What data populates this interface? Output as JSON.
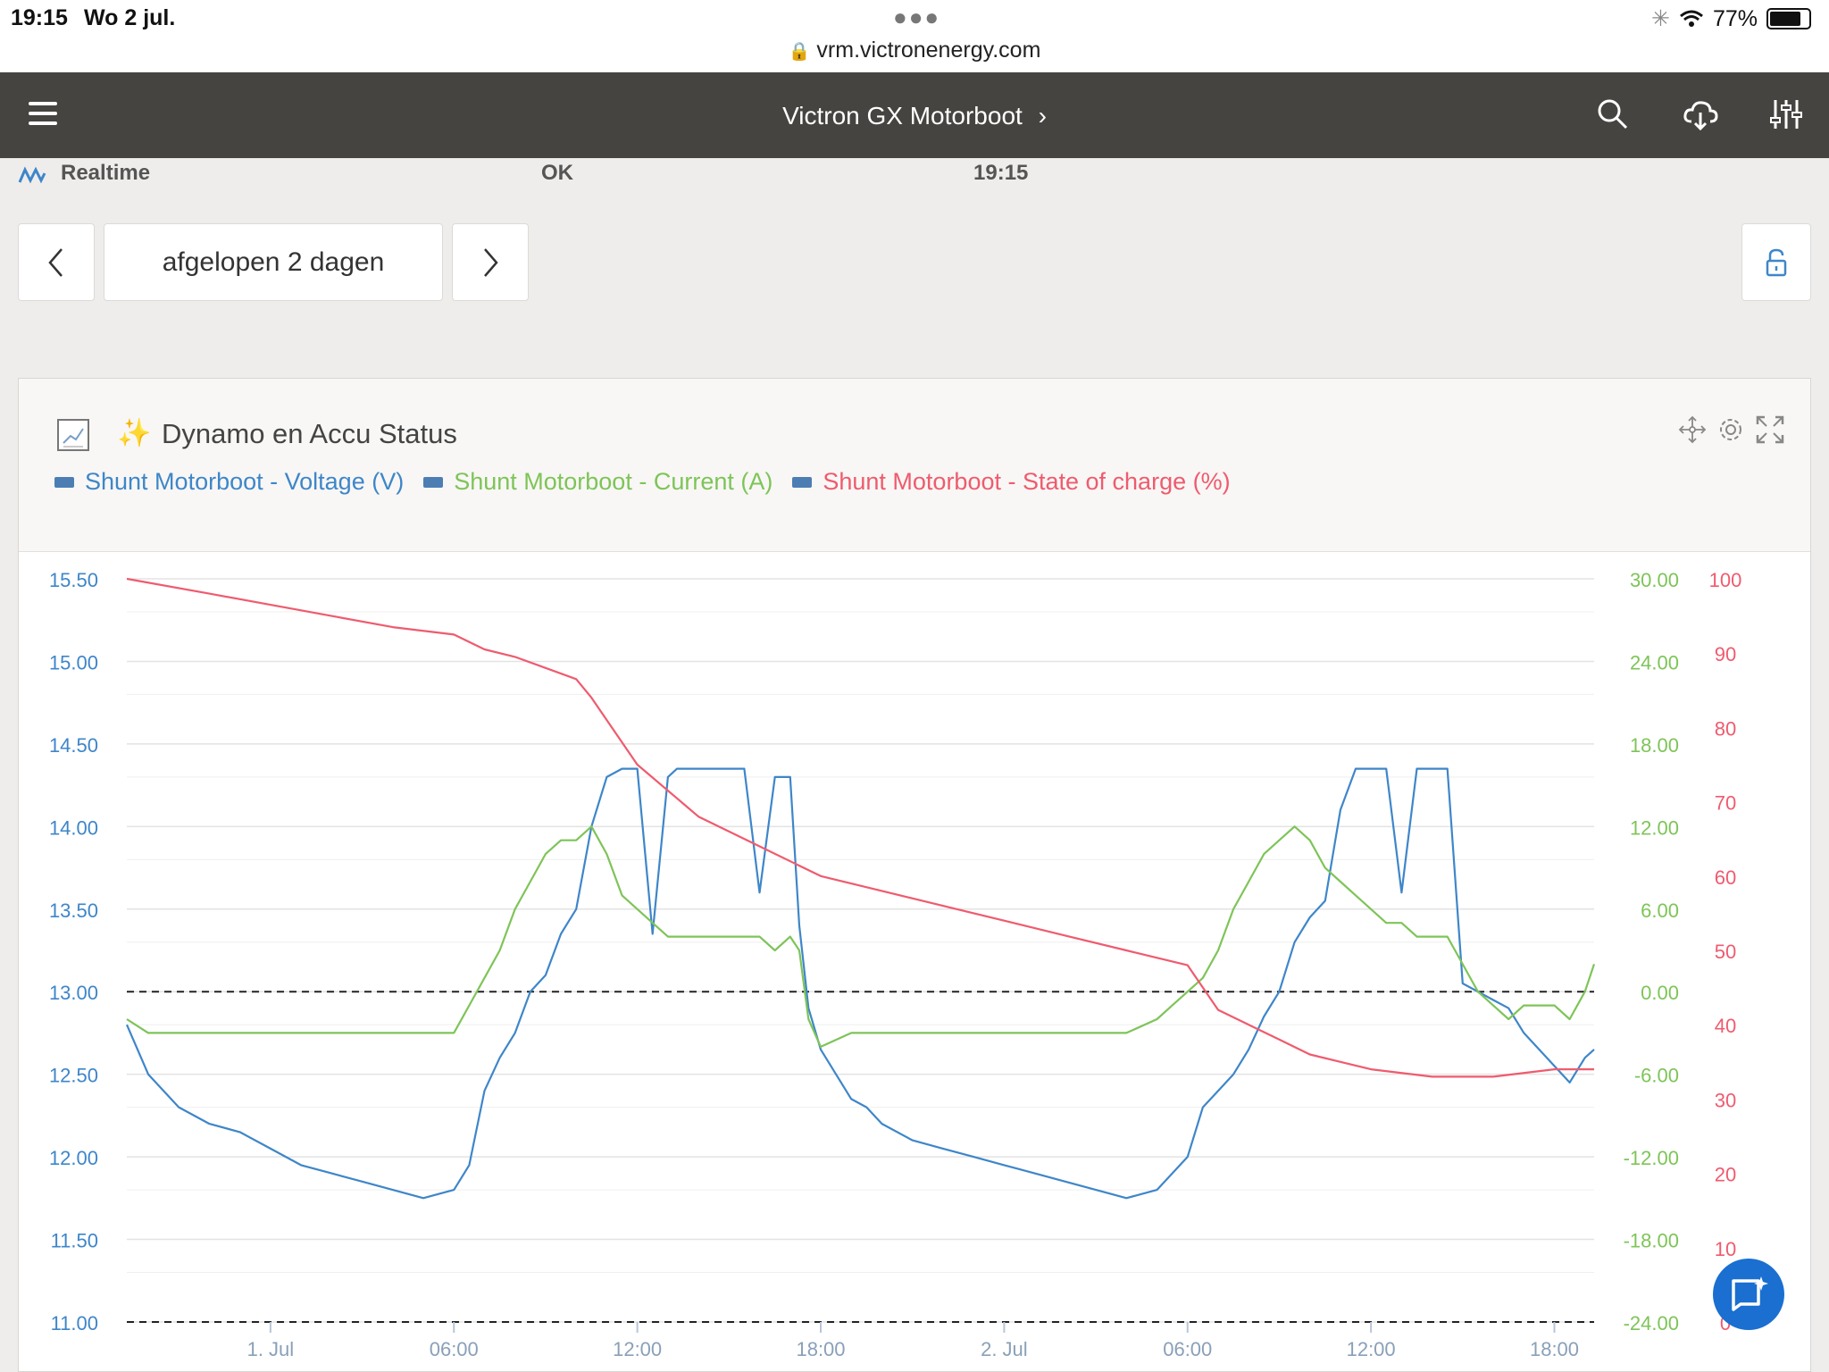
{
  "status_bar": {
    "time": "19:15",
    "date": "Wo 2 jul.",
    "url": "vrm.victronenergy.com",
    "battery": "77%"
  },
  "header": {
    "title": "Victron GX Motorboot",
    "icons": [
      "menu-icon",
      "search-icon",
      "cloud-download-icon",
      "sliders-icon"
    ]
  },
  "realtime": {
    "label": "Realtime",
    "status": "OK",
    "time": "19:15"
  },
  "range": {
    "label": "afgelopen 2 dagen"
  },
  "widget": {
    "title": "Dynamo en Accu Status",
    "legend": [
      {
        "label": "Shunt Motorboot  -  Voltage (V)",
        "color": "#3e86c9"
      },
      {
        "label": "Shunt Motorboot  -  Current (A)",
        "color": "#7ec458"
      },
      {
        "label": "Shunt Motorboot  -  State of charge (%)",
        "color": "#ef5b6e"
      }
    ]
  },
  "chart_data": {
    "type": "line",
    "x_ticks": [
      "1. Jul",
      "06:00",
      "12:00",
      "18:00",
      "2. Jul",
      "06:00",
      "12:00",
      "18:00"
    ],
    "y_left_ticks": [
      "15.50",
      "15.00",
      "14.50",
      "14.00",
      "13.50",
      "13.00",
      "12.50",
      "12.00",
      "11.50",
      "11.00"
    ],
    "y_right1_ticks": [
      "30.00",
      "24.00",
      "18.00",
      "12.00",
      "6.00",
      "0.00",
      "-6.00",
      "-12.00",
      "-18.00",
      "-24.00"
    ],
    "y_right2_ticks": [
      "100",
      "90",
      "80",
      "70",
      "60",
      "50",
      "40",
      "30",
      "20",
      "10",
      "0"
    ],
    "ylim_voltage": [
      11.0,
      15.5
    ],
    "ylim_current": [
      -24,
      30
    ],
    "ylim_soc": [
      0,
      100
    ],
    "series": [
      {
        "name": "Shunt Motorboot  -  Voltage (V)",
        "axis": "voltage",
        "x": [
          -4.7,
          -4,
          -3,
          -2,
          -1,
          0,
          1,
          2,
          3,
          4,
          5,
          6,
          6.5,
          7,
          7.5,
          8,
          8.5,
          9,
          9.5,
          10,
          10.5,
          11,
          11.5,
          12,
          12.5,
          13,
          13.3,
          13.8,
          14,
          14.5,
          15,
          15.5,
          16,
          16.5,
          17,
          17.3,
          17.6,
          18,
          18.5,
          19,
          19.5,
          20,
          21,
          22,
          23,
          24,
          25,
          26,
          27,
          28,
          29,
          30,
          30.5,
          31,
          31.5,
          32,
          32.5,
          33,
          33.5,
          34,
          34.5,
          35,
          35.5,
          36,
          36.5,
          37,
          37.5,
          38,
          38.5,
          39,
          39.5,
          40,
          40.5,
          41,
          41.5,
          42,
          42.5,
          43,
          43.3
        ],
        "values": [
          12.8,
          12.5,
          12.3,
          12.2,
          12.15,
          12.05,
          11.95,
          11.9,
          11.85,
          11.8,
          11.75,
          11.8,
          11.95,
          12.4,
          12.6,
          12.75,
          13.0,
          13.1,
          13.35,
          13.5,
          14.0,
          14.3,
          14.35,
          14.35,
          13.35,
          14.3,
          14.35,
          14.35,
          14.35,
          14.35,
          14.35,
          14.35,
          13.6,
          14.3,
          14.3,
          13.4,
          12.9,
          12.65,
          12.5,
          12.35,
          12.3,
          12.2,
          12.1,
          12.05,
          12.0,
          11.95,
          11.9,
          11.85,
          11.8,
          11.75,
          11.8,
          12.0,
          12.3,
          12.4,
          12.5,
          12.65,
          12.85,
          13.0,
          13.3,
          13.45,
          13.55,
          14.1,
          14.35,
          14.35,
          14.35,
          13.6,
          14.35,
          14.35,
          14.35,
          13.05,
          13.0,
          12.95,
          12.9,
          12.75,
          12.65,
          12.55,
          12.45,
          12.6,
          12.65
        ]
      },
      {
        "name": "Shunt Motorboot  -  Current (A)",
        "axis": "current",
        "x": [
          -4.7,
          -4,
          -3,
          -2,
          -1,
          0,
          1,
          2,
          3,
          4,
          5,
          6,
          6.5,
          7,
          7.5,
          8,
          8.5,
          9,
          9.5,
          10,
          10.5,
          11,
          11.5,
          12,
          12.5,
          13,
          13.3,
          14,
          15,
          16,
          16.5,
          17,
          17.3,
          17.6,
          18,
          19,
          20,
          21,
          22,
          23,
          24,
          25,
          26,
          27,
          28,
          29,
          29.5,
          30,
          30.5,
          31,
          31.5,
          32,
          32.5,
          33,
          33.5,
          34,
          34.5,
          35,
          35.5,
          36,
          36.5,
          37,
          37.5,
          38,
          38.5,
          39,
          39.5,
          40,
          40.5,
          41,
          41.5,
          42,
          42.5,
          43,
          43.3
        ],
        "values": [
          -2,
          -3,
          -3,
          -3,
          -3,
          -3,
          -3,
          -3,
          -3,
          -3,
          -3,
          -3,
          -1,
          1,
          3,
          6,
          8,
          10,
          11,
          11,
          12,
          10,
          7,
          6,
          5,
          4,
          4,
          4,
          4,
          4,
          3,
          4,
          3,
          -2,
          -4,
          -3,
          -3,
          -3,
          -3,
          -3,
          -3,
          -3,
          -3,
          -3,
          -3,
          -2,
          -1,
          0,
          1,
          3,
          6,
          8,
          10,
          11,
          12,
          11,
          9,
          8,
          7,
          6,
          5,
          5,
          4,
          4,
          4,
          2,
          0,
          -1,
          -2,
          -1,
          -1,
          -1,
          -2,
          0,
          2
        ]
      },
      {
        "name": "Shunt Motorboot  -  State of charge (%)",
        "axis": "soc",
        "x": [
          -4.7,
          -2,
          0,
          2,
          4,
          6,
          7,
          8,
          9,
          10,
          10.5,
          11,
          12,
          14,
          16,
          18,
          20,
          22,
          24,
          26,
          28,
          30,
          30.5,
          31,
          32,
          33,
          34,
          35,
          36,
          38,
          40,
          42,
          43.3
        ],
        "values": [
          100,
          98,
          96.5,
          95,
          93.5,
          92.5,
          90.5,
          89.5,
          88,
          86.5,
          84,
          81,
          75,
          68,
          64,
          60,
          58,
          56,
          54,
          52,
          50,
          48,
          45,
          42,
          40,
          38,
          36,
          35,
          34,
          33,
          33,
          34,
          34
        ]
      }
    ],
    "x_range": [
      -4.7,
      43.3
    ],
    "grid": true,
    "legend_position": "top-left"
  },
  "colors": {
    "header_bg": "#464441",
    "voltage": "#3e86c9",
    "current": "#7ec458",
    "soc": "#ef5b6e",
    "fab": "#1a6fd0"
  }
}
